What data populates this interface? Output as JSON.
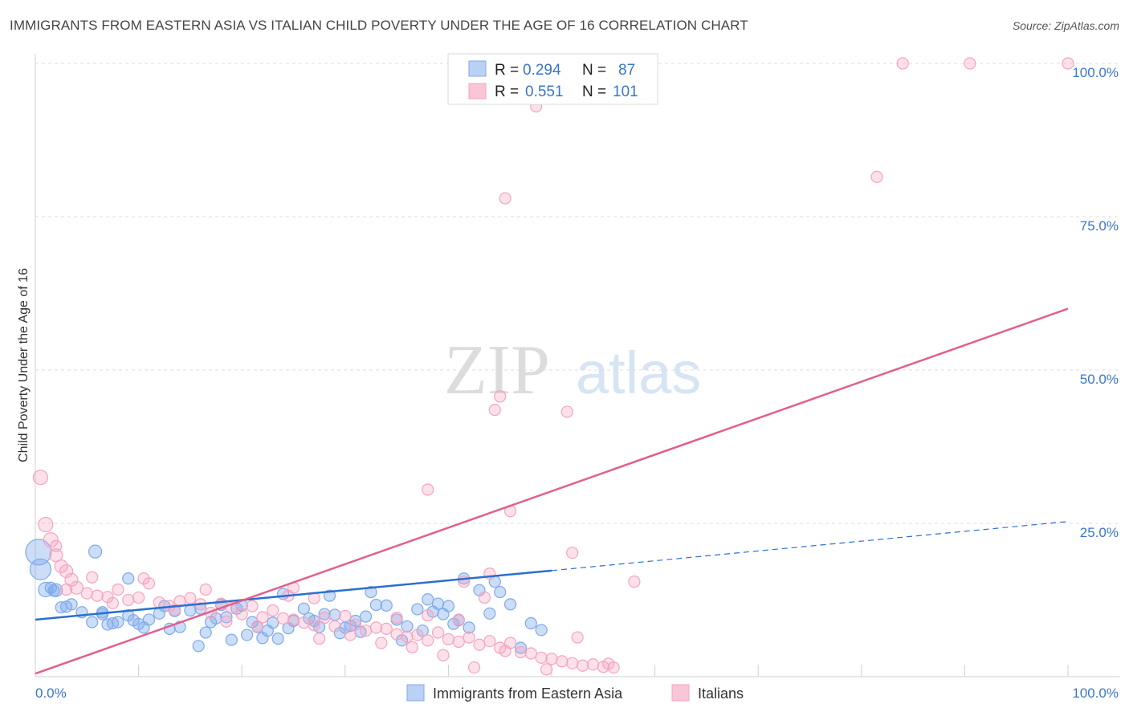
{
  "chart_data": {
    "type": "scatter",
    "title": "IMMIGRANTS FROM EASTERN ASIA VS ITALIAN CHILD POVERTY UNDER THE AGE OF 16 CORRELATION CHART",
    "source": "Source: ZipAtlas.com",
    "xlabel": "",
    "ylabel": "Child Poverty Under the Age of 16",
    "xlim": [
      0,
      100
    ],
    "ylim": [
      0,
      100
    ],
    "x_tick_labels": [
      "0.0%",
      "100.0%"
    ],
    "y_ticks": [
      25,
      50,
      75,
      100
    ],
    "y_tick_labels": [
      "25.0%",
      "50.0%",
      "75.0%",
      "100.0%"
    ],
    "watermark": {
      "part1": "ZIP",
      "part2": "atlas"
    },
    "stats": {
      "r_label": "R =",
      "n_label": "N =",
      "rows": [
        {
          "r": "0.294",
          "n": "87"
        },
        {
          "r": "0.551",
          "n": "101"
        }
      ]
    },
    "series": [
      {
        "name": "Immigrants from Eastern Asia",
        "color": "#7eaaea",
        "line_color": "#2a6fd0",
        "trend": {
          "x0": 0,
          "y0": 9.3,
          "x1": 50,
          "y1": 17.3,
          "dash_x1": 100,
          "dash_y1": 25.3
        },
        "points": [
          [
            0.3,
            20.3,
            16
          ],
          [
            0.5,
            17.5,
            13
          ],
          [
            1.0,
            14.2,
            9
          ],
          [
            2.0,
            14.1,
            8
          ],
          [
            1.5,
            14.5,
            7
          ],
          [
            2.5,
            11.3,
            7
          ],
          [
            3.5,
            11.8,
            7
          ],
          [
            4.5,
            10.5,
            7
          ],
          [
            5.5,
            8.9,
            7
          ],
          [
            6.5,
            10.2,
            7
          ],
          [
            7.0,
            8.5,
            7
          ],
          [
            8.0,
            8.9,
            7
          ],
          [
            9.0,
            10.0,
            7
          ],
          [
            9.5,
            9.2,
            7
          ],
          [
            10.0,
            8.6,
            7
          ],
          [
            11.0,
            9.3,
            7
          ],
          [
            12.0,
            10.3,
            7
          ],
          [
            13.0,
            7.8,
            7
          ],
          [
            14.0,
            8.1,
            7
          ],
          [
            15.0,
            10.8,
            7
          ],
          [
            16.0,
            11.1,
            7
          ],
          [
            16.5,
            7.2,
            7
          ],
          [
            17.0,
            8.9,
            7
          ],
          [
            18.0,
            11.7,
            7
          ],
          [
            19.0,
            6.0,
            7
          ],
          [
            20.0,
            11.6,
            7
          ],
          [
            21.0,
            8.9,
            7
          ],
          [
            22.0,
            6.3,
            7
          ],
          [
            22.5,
            7.5,
            7
          ],
          [
            23.0,
            8.8,
            7
          ],
          [
            24.0,
            13.5,
            7
          ],
          [
            25.0,
            9.1,
            7
          ],
          [
            26.0,
            11.1,
            7
          ],
          [
            27.0,
            9.1,
            7
          ],
          [
            28.0,
            10.2,
            7
          ],
          [
            28.5,
            13.2,
            7
          ],
          [
            29.0,
            10.1,
            7
          ],
          [
            30.0,
            8.0,
            7
          ],
          [
            31.0,
            9.1,
            7
          ],
          [
            31.5,
            7.3,
            7
          ],
          [
            32.0,
            9.8,
            7
          ],
          [
            32.5,
            13.8,
            7
          ],
          [
            33.0,
            11.7,
            7
          ],
          [
            34.0,
            11.6,
            7
          ],
          [
            35.0,
            9.3,
            7
          ],
          [
            35.5,
            5.9,
            7
          ],
          [
            36.0,
            8.2,
            7
          ],
          [
            37.0,
            11.0,
            7
          ],
          [
            38.0,
            12.6,
            7
          ],
          [
            38.5,
            10.6,
            7
          ],
          [
            39.0,
            11.9,
            7
          ],
          [
            40.0,
            11.5,
            7
          ],
          [
            41.0,
            9.2,
            7
          ],
          [
            41.5,
            16.0,
            7
          ],
          [
            42.0,
            8.0,
            7
          ],
          [
            43.0,
            14.1,
            7
          ],
          [
            44.0,
            10.3,
            7
          ],
          [
            44.5,
            15.5,
            7
          ],
          [
            45.0,
            13.8,
            7
          ],
          [
            46.0,
            11.8,
            7
          ],
          [
            47.0,
            4.7,
            7
          ],
          [
            48.0,
            8.7,
            7
          ],
          [
            49.0,
            7.6,
            7
          ],
          [
            5.8,
            20.4,
            8
          ],
          [
            9.0,
            16.0,
            7
          ],
          [
            1.8,
            14.0,
            7
          ],
          [
            3.0,
            11.4,
            7
          ],
          [
            6.5,
            10.5,
            7
          ],
          [
            7.5,
            8.7,
            7
          ],
          [
            10.5,
            8.0,
            7
          ],
          [
            12.5,
            11.5,
            7
          ],
          [
            13.5,
            10.7,
            7
          ],
          [
            15.8,
            5.0,
            7
          ],
          [
            17.5,
            9.5,
            7
          ],
          [
            18.5,
            9.7,
            7
          ],
          [
            19.5,
            11.1,
            7
          ],
          [
            20.5,
            6.8,
            7
          ],
          [
            21.5,
            8.1,
            7
          ],
          [
            23.5,
            6.2,
            7
          ],
          [
            24.5,
            7.9,
            7
          ],
          [
            26.5,
            9.5,
            7
          ],
          [
            27.5,
            8.1,
            7
          ],
          [
            29.5,
            7.1,
            7
          ],
          [
            30.5,
            8.3,
            7
          ],
          [
            37.5,
            7.5,
            7
          ],
          [
            39.5,
            10.2,
            7
          ],
          [
            40.5,
            8.6,
            7
          ]
        ]
      },
      {
        "name": "Italians",
        "color": "#f6a3bf",
        "line_color": "#e0608d",
        "trend": {
          "x0": 0,
          "y0": 0.5,
          "x1": 100,
          "y1": 60.0
        },
        "points": [
          [
            0.5,
            32.5,
            9
          ],
          [
            1.0,
            24.8,
            9
          ],
          [
            1.5,
            22.3,
            9
          ],
          [
            2.0,
            19.8,
            8
          ],
          [
            2.5,
            18.0,
            8
          ],
          [
            3.0,
            17.2,
            8
          ],
          [
            3.5,
            15.8,
            8
          ],
          [
            4.0,
            14.5,
            8
          ],
          [
            5.0,
            13.6,
            7
          ],
          [
            6.0,
            13.2,
            7
          ],
          [
            7.0,
            13.0,
            7
          ],
          [
            8.0,
            14.2,
            7
          ],
          [
            9.0,
            12.5,
            7
          ],
          [
            10.0,
            12.9,
            7
          ],
          [
            11.0,
            15.2,
            7
          ],
          [
            12.0,
            12.1,
            7
          ],
          [
            13.0,
            11.5,
            7
          ],
          [
            14.0,
            12.3,
            7
          ],
          [
            15.0,
            12.8,
            7
          ],
          [
            16.0,
            11.8,
            7
          ],
          [
            17.0,
            10.4,
            7
          ],
          [
            18.0,
            11.9,
            7
          ],
          [
            19.0,
            11.2,
            7
          ],
          [
            20.0,
            10.2,
            7
          ],
          [
            21.0,
            11.5,
            7
          ],
          [
            22.0,
            9.7,
            7
          ],
          [
            23.0,
            10.8,
            7
          ],
          [
            24.0,
            9.5,
            7
          ],
          [
            25.0,
            9.3,
            7
          ],
          [
            26.0,
            8.8,
            7
          ],
          [
            27.0,
            8.4,
            7
          ],
          [
            28.0,
            9.6,
            7
          ],
          [
            29.0,
            8.2,
            7
          ],
          [
            30.0,
            9.9,
            7
          ],
          [
            31.0,
            8.5,
            7
          ],
          [
            32.0,
            7.5,
            7
          ],
          [
            33.0,
            8.0,
            7
          ],
          [
            34.0,
            7.8,
            7
          ],
          [
            35.0,
            6.9,
            7
          ],
          [
            36.0,
            6.5,
            7
          ],
          [
            37.0,
            6.8,
            7
          ],
          [
            38.0,
            5.9,
            7
          ],
          [
            39.0,
            7.2,
            7
          ],
          [
            40.0,
            6.1,
            7
          ],
          [
            41.0,
            5.7,
            7
          ],
          [
            42.0,
            6.4,
            7
          ],
          [
            43.0,
            5.2,
            7
          ],
          [
            44.0,
            5.8,
            7
          ],
          [
            45.0,
            4.7,
            7
          ],
          [
            46.0,
            5.5,
            7
          ],
          [
            47.0,
            4.0,
            7
          ],
          [
            48.0,
            3.8,
            7
          ],
          [
            49.0,
            3.1,
            7
          ],
          [
            50.0,
            2.9,
            7
          ],
          [
            51.0,
            2.5,
            7
          ],
          [
            52.0,
            2.2,
            7
          ],
          [
            53.0,
            1.8,
            7
          ],
          [
            54.0,
            2.0,
            7
          ],
          [
            55.0,
            1.6,
            7
          ],
          [
            56.0,
            1.5,
            7
          ],
          [
            44.5,
            43.5,
            7
          ],
          [
            45.0,
            45.7,
            7
          ],
          [
            51.5,
            43.2,
            7
          ],
          [
            48.5,
            93.0,
            7
          ],
          [
            45.5,
            78.0,
            7
          ],
          [
            84.0,
            100.0,
            7
          ],
          [
            90.5,
            100.0,
            7
          ],
          [
            100.0,
            100.0,
            7
          ],
          [
            81.5,
            81.5,
            7
          ],
          [
            38.0,
            30.5,
            7
          ],
          [
            46.0,
            27.0,
            7
          ],
          [
            52.0,
            20.2,
            7
          ],
          [
            44.0,
            16.8,
            7
          ],
          [
            41.5,
            15.5,
            7
          ],
          [
            58.0,
            15.5,
            7
          ],
          [
            43.5,
            12.9,
            7
          ],
          [
            41.0,
            9.3,
            7
          ],
          [
            38.0,
            10.0,
            7
          ],
          [
            35.0,
            9.6,
            7
          ],
          [
            27.0,
            12.8,
            7
          ],
          [
            7.5,
            12.0,
            7
          ],
          [
            3.0,
            14.2,
            7
          ],
          [
            5.5,
            16.2,
            7
          ],
          [
            10.5,
            16.0,
            7
          ],
          [
            13.5,
            10.9,
            7
          ],
          [
            16.5,
            14.2,
            7
          ],
          [
            18.5,
            9.0,
            7
          ],
          [
            21.5,
            8.2,
            7
          ],
          [
            24.5,
            13.2,
            7
          ],
          [
            27.5,
            6.2,
            7
          ],
          [
            30.5,
            6.8,
            7
          ],
          [
            33.5,
            5.5,
            7
          ],
          [
            36.5,
            4.8,
            7
          ],
          [
            39.5,
            3.5,
            7
          ],
          [
            42.5,
            1.5,
            7
          ],
          [
            45.5,
            4.2,
            7
          ],
          [
            49.5,
            1.2,
            7
          ],
          [
            52.5,
            6.4,
            7
          ],
          [
            55.5,
            2.1,
            7
          ],
          [
            25.0,
            14.5,
            7
          ],
          [
            2.0,
            21.3,
            7
          ]
        ]
      }
    ]
  }
}
